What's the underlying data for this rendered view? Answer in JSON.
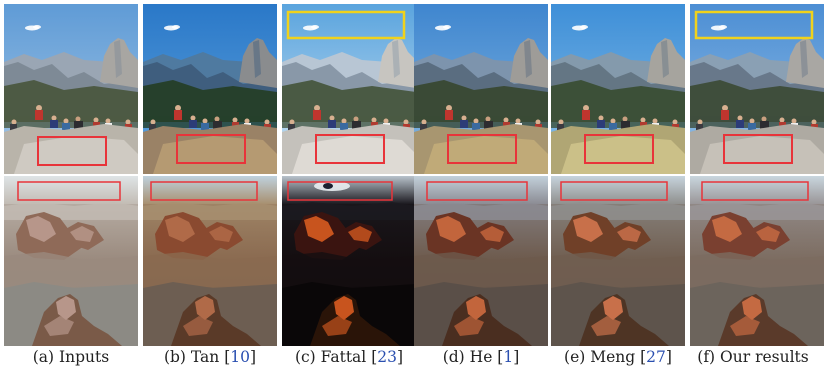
{
  "figure": {
    "columns": [
      {
        "id": "inputs",
        "tag": "(a)",
        "method": "Inputs",
        "ref": "",
        "variant": "input",
        "box_top": false
      },
      {
        "id": "tan",
        "tag": "(b)",
        "method": "Tan",
        "ref": "10",
        "variant": "tan",
        "box_top": false
      },
      {
        "id": "fattal",
        "tag": "(c)",
        "method": "Fattal",
        "ref": "23",
        "variant": "fattal",
        "box_top": true
      },
      {
        "id": "he",
        "tag": "(d)",
        "method": "He",
        "ref": "1",
        "variant": "he",
        "box_top": false
      },
      {
        "id": "meng",
        "tag": "(e)",
        "method": "Meng",
        "ref": "27",
        "variant": "meng",
        "box_top": false
      },
      {
        "id": "ours",
        "tag": "(f)",
        "method": "Our results",
        "ref": "",
        "variant": "ours",
        "box_top": true
      }
    ],
    "rows": [
      "yosemite-valley",
      "grand-canyon"
    ],
    "colors": {
      "highlight_box_red": "#e8343a",
      "highlight_box_yellow": "#f0d21c",
      "citation_link": "#2a4fb0"
    }
  }
}
